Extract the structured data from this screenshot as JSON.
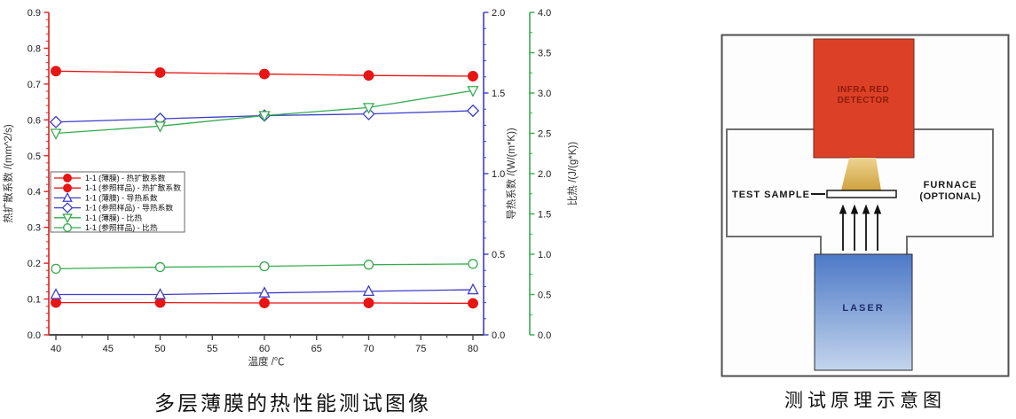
{
  "captions": {
    "chart": "多层薄膜的热性能测试图像",
    "diagram": "测试原理示意图"
  },
  "chart_data": {
    "type": "line",
    "x_axis": {
      "label": "温度 /℃",
      "ticks": [
        40,
        45,
        50,
        55,
        60,
        65,
        70,
        75,
        80
      ]
    },
    "y_axes": [
      {
        "id": "diffusivity",
        "label": "热扩散系数 /(mm^2/s)",
        "side": "left",
        "color": "#e02020",
        "lim": [
          0,
          0.9
        ],
        "tick_step": 0.1,
        "tick_decimals": 1,
        "minors": 4
      },
      {
        "id": "conductivity",
        "label": "导热系数 /(W/(m*K))",
        "side": "right",
        "color": "#3d3dcc",
        "lim": [
          0,
          2.0
        ],
        "tick_step": 0.5,
        "tick_decimals": 1,
        "minors": 4
      },
      {
        "id": "specific_heat",
        "label": "比热 /(J/(g*K))",
        "side": "right-outer",
        "color": "#36ab4e",
        "lim": [
          0,
          4.0
        ],
        "tick_step": 0.5,
        "tick_decimals": 1,
        "minors": 1
      }
    ],
    "x": [
      40,
      50,
      60,
      70,
      80
    ],
    "series": [
      {
        "name": "1-1 (薄膜) - 热扩散系数",
        "axis": "diffusivity",
        "marker": "circle",
        "filled": true,
        "color": "#e81515",
        "values": [
          0.09,
          0.09,
          0.089,
          0.089,
          0.088
        ]
      },
      {
        "name": "1-1 (参照样品) - 热扩散系数",
        "axis": "diffusivity",
        "marker": "circle",
        "filled": true,
        "color": "#e81515",
        "values": [
          0.736,
          0.732,
          0.728,
          0.724,
          0.722
        ]
      },
      {
        "name": "1-1 (薄膜) - 导热系数",
        "axis": "conductivity",
        "marker": "triangle-up",
        "filled": false,
        "color": "#3d3dcc",
        "values": [
          0.25,
          0.25,
          0.26,
          0.27,
          0.28
        ]
      },
      {
        "name": "1-1 (参照样品) - 导热系数",
        "axis": "conductivity",
        "marker": "diamond",
        "filled": false,
        "color": "#3d3dcc",
        "values": [
          1.32,
          1.34,
          1.36,
          1.37,
          1.39
        ]
      },
      {
        "name": "1-1 (薄膜) - 比热",
        "axis": "specific_heat",
        "marker": "triangle-down",
        "filled": false,
        "color": "#36ab4e",
        "values": [
          2.5,
          2.59,
          2.72,
          2.82,
          3.03
        ]
      },
      {
        "name": "1-1 (参照样品) - 比热",
        "axis": "specific_heat",
        "marker": "circle",
        "filled": false,
        "color": "#36ab4e",
        "values": [
          0.82,
          0.84,
          0.85,
          0.87,
          0.88
        ]
      }
    ],
    "legend": {
      "position": "middle-left"
    }
  },
  "diagram": {
    "detector_lines": [
      "INFRA RED",
      "DETECTOR"
    ],
    "test_sample_label": "TEST SAMPLE",
    "furnace_lines": [
      "FURNACE",
      "(OPTIONAL)"
    ],
    "laser_label": "LASER",
    "colors": {
      "detector_fill": "#dc4128",
      "detector_text": "#8d1a07",
      "beam_top": "#ecd492",
      "beam_bottom": "#cfa23e",
      "laser_top": "#4d79c7",
      "laser_bottom": "#c3d5ec",
      "laser_text": "#1d2d6e",
      "outline": "#6e6e6e"
    }
  }
}
